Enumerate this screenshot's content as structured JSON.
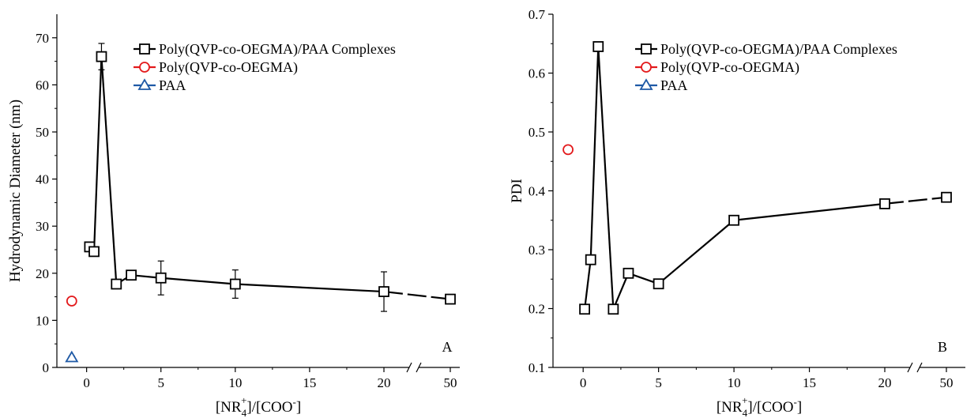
{
  "chart_data": [
    {
      "type": "line",
      "panel_label": "A",
      "xlabel_parts": {
        "open": "[NR",
        "sub": "4",
        "sup": "+",
        "close": "]/[COO",
        "close_sup": "-",
        "end": "]"
      },
      "ylabel": "Hydrodynamic Diameter (nm)",
      "ylim": [
        0,
        75
      ],
      "y_ticks": [
        0,
        10,
        20,
        30,
        40,
        50,
        60,
        70
      ],
      "x_ticks": [
        "0",
        "5",
        "10",
        "15",
        "20",
        "50"
      ],
      "x_break": "between 20 and 50",
      "legend_position": "top-right",
      "series": [
        {
          "name": "Poly(QVP-co-OEGMA)/PAA Complexes",
          "color": "#000000",
          "marker": "square",
          "x": [
            0.2,
            0.5,
            1,
            2,
            3,
            5,
            10,
            20,
            50
          ],
          "y": [
            25.6,
            24.6,
            66,
            17.7,
            19.6,
            19,
            17.7,
            16.1,
            14.5
          ],
          "err": [
            0.5,
            0.5,
            2.8,
            0.5,
            0.6,
            3.6,
            3,
            4.2,
            0.5
          ]
        },
        {
          "name": "Poly(QVP-co-OEGMA)",
          "color": "#e31a1c",
          "marker": "circle",
          "x": [
            -1
          ],
          "y": [
            14.1
          ],
          "err": [
            0.3
          ]
        },
        {
          "name": "PAA",
          "color": "#1f5aa6",
          "marker": "triangle",
          "x": [
            -1
          ],
          "y": [
            2.1
          ],
          "err": [
            0.3
          ]
        }
      ]
    },
    {
      "type": "line",
      "panel_label": "B",
      "xlabel_parts": {
        "open": "[NR",
        "sub": "4",
        "sup": "+",
        "close": "]/[COO",
        "close_sup": "-",
        "end": "]"
      },
      "ylabel": "PDI",
      "ylim": [
        0.1,
        0.7
      ],
      "y_ticks": [
        "0.1",
        "0.2",
        "0.3",
        "0.4",
        "0.5",
        "0.6",
        "0.7"
      ],
      "x_ticks": [
        "0",
        "5",
        "10",
        "15",
        "20",
        "50"
      ],
      "x_break": "between 20 and 50",
      "legend_position": "top-right",
      "series": [
        {
          "name": "Poly(QVP-co-OEGMA)/PAA Complexes",
          "color": "#000000",
          "marker": "square",
          "x": [
            0.1,
            0.5,
            1,
            2,
            3,
            5,
            10,
            20,
            50
          ],
          "y": [
            0.199,
            0.283,
            0.645,
            0.199,
            0.26,
            0.242,
            0.35,
            0.378,
            0.389
          ]
        },
        {
          "name": "Poly(QVP-co-OEGMA)",
          "color": "#e31a1c",
          "marker": "circle",
          "x": [
            -1
          ],
          "y": [
            0.47
          ]
        },
        {
          "name": "PAA",
          "color": "#1f5aa6",
          "marker": "triangle",
          "x": [],
          "y": []
        }
      ]
    }
  ]
}
